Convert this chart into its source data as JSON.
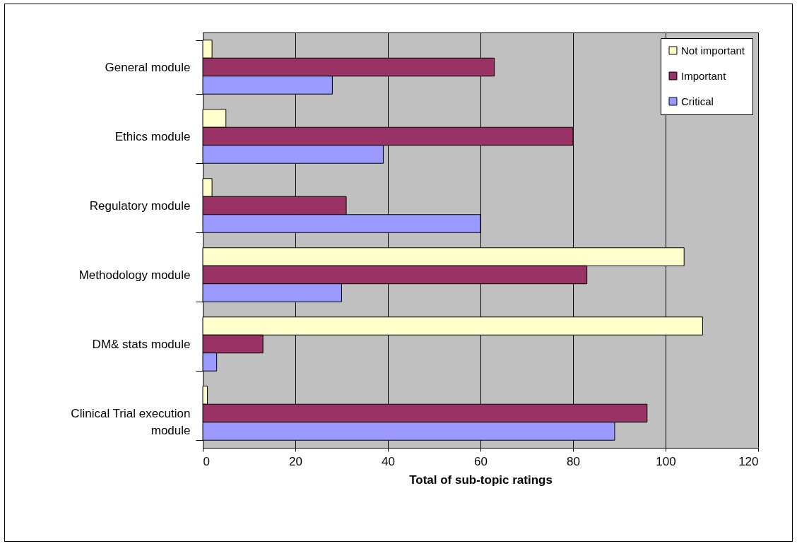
{
  "chart_data": {
    "type": "bar",
    "orientation": "horizontal",
    "xlabel": "Total of sub-topic ratings",
    "categories": [
      "General module",
      "Ethics module",
      "Regulatory module",
      "Methodology module",
      "DM& stats module",
      "Clinical Trial execution module"
    ],
    "series": [
      {
        "name": "Not important",
        "color": "#ffffcc",
        "values": [
          2,
          5,
          2,
          104,
          108,
          1
        ]
      },
      {
        "name": "Important",
        "color": "#993366",
        "values": [
          63,
          80,
          31,
          83,
          13,
          96
        ]
      },
      {
        "name": "Critical",
        "color": "#9999ff",
        "values": [
          28,
          39,
          60,
          30,
          3,
          89
        ]
      }
    ],
    "xlim": [
      0,
      120
    ],
    "xticks": [
      0,
      20,
      40,
      60,
      80,
      100,
      120
    ],
    "grid": "x",
    "legend": "top right"
  }
}
